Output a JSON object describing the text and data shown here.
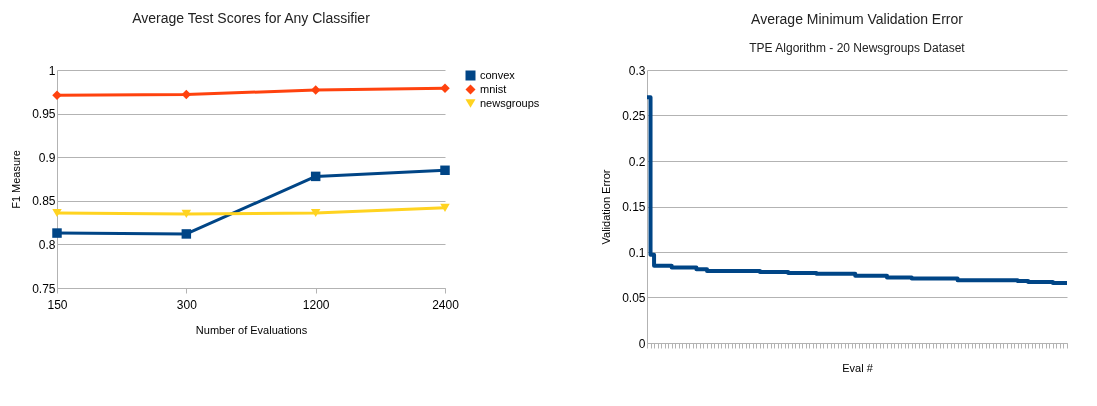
{
  "chart_data": [
    {
      "type": "line",
      "title": "Average Test Scores for Any Classifier",
      "xlabel": "Number of Evaluations",
      "ylabel": "F1 Measure",
      "categories": [
        "150",
        "300",
        "1200",
        "2400"
      ],
      "series": [
        {
          "name": "convex",
          "color": "#004586",
          "marker": "square",
          "values": [
            0.813,
            0.812,
            0.878,
            0.885
          ]
        },
        {
          "name": "mnist",
          "color": "#ff420e",
          "marker": "diamond",
          "values": [
            0.971,
            0.972,
            0.977,
            0.979
          ]
        },
        {
          "name": "newsgroups",
          "color": "#ffd320",
          "marker": "triangle",
          "values": [
            0.836,
            0.835,
            0.836,
            0.842
          ]
        }
      ],
      "ylim": [
        0.75,
        1
      ],
      "yticks": [
        0.75,
        0.8,
        0.85,
        0.9,
        0.95,
        1
      ],
      "grid": "y",
      "legend": "right"
    },
    {
      "type": "step",
      "title": "Average Minimum Validation Error",
      "subtitle": "TPE Algorithm - 20 Newsgroups Dataset",
      "xlabel": "Eval #",
      "ylabel": "Validation Error",
      "categories": [
        null,
        null,
        null,
        null,
        null,
        null,
        null,
        null,
        null,
        null,
        null,
        null,
        null,
        null,
        null,
        null,
        null,
        null,
        null,
        null,
        null,
        null,
        null,
        null,
        null,
        null,
        null,
        null,
        null,
        null,
        null,
        null,
        null,
        null,
        null,
        null,
        null,
        null,
        null,
        null,
        null,
        null,
        null,
        null,
        null,
        null,
        null,
        null,
        null,
        null,
        null,
        null,
        null,
        null,
        null,
        null,
        null,
        null,
        null,
        null,
        null,
        null,
        null,
        null,
        null,
        null,
        null,
        null,
        null,
        null,
        null,
        null,
        null,
        null,
        null,
        null,
        null,
        null,
        null,
        null,
        null,
        null,
        null,
        null,
        null,
        null,
        null,
        null,
        null,
        null,
        null,
        null,
        null,
        null,
        null,
        null,
        null,
        null,
        null,
        null,
        null,
        null,
        null,
        null,
        null,
        null,
        null,
        null,
        null,
        null,
        null,
        null,
        null,
        null,
        null,
        null,
        null,
        null,
        null,
        null
      ],
      "series": [
        {
          "color": "#004586",
          "values": [
            0.27,
            0.097,
            0.085,
            0.085,
            0.085,
            0.085,
            0.085,
            0.083,
            0.083,
            0.083,
            0.083,
            0.083,
            0.083,
            0.083,
            0.081,
            0.081,
            0.081,
            0.079,
            0.079,
            0.079,
            0.079,
            0.079,
            0.079,
            0.079,
            0.079,
            0.079,
            0.079,
            0.079,
            0.079,
            0.079,
            0.079,
            0.079,
            0.078,
            0.078,
            0.078,
            0.078,
            0.078,
            0.078,
            0.078,
            0.078,
            0.077,
            0.077,
            0.077,
            0.077,
            0.077,
            0.077,
            0.077,
            0.077,
            0.076,
            0.076,
            0.076,
            0.076,
            0.076,
            0.076,
            0.076,
            0.076,
            0.076,
            0.076,
            0.076,
            0.074,
            0.074,
            0.074,
            0.074,
            0.074,
            0.074,
            0.074,
            0.074,
            0.074,
            0.072,
            0.072,
            0.072,
            0.072,
            0.072,
            0.072,
            0.072,
            0.071,
            0.071,
            0.071,
            0.071,
            0.071,
            0.071,
            0.071,
            0.071,
            0.071,
            0.071,
            0.071,
            0.071,
            0.071,
            0.069,
            0.069,
            0.069,
            0.069,
            0.069,
            0.069,
            0.069,
            0.069,
            0.069,
            0.069,
            0.069,
            0.069,
            0.069,
            0.069,
            0.069,
            0.069,
            0.069,
            0.068,
            0.068,
            0.068,
            0.067,
            0.067,
            0.067,
            0.067,
            0.067,
            0.067,
            0.067,
            0.066,
            0.066,
            0.066,
            0.066,
            0.066
          ]
        }
      ],
      "ylim": [
        0,
        0.3
      ],
      "yticks": [
        0,
        0.05,
        0.1,
        0.15,
        0.2,
        0.25,
        0.3
      ],
      "grid": "y",
      "tick_labels": "y"
    }
  ]
}
